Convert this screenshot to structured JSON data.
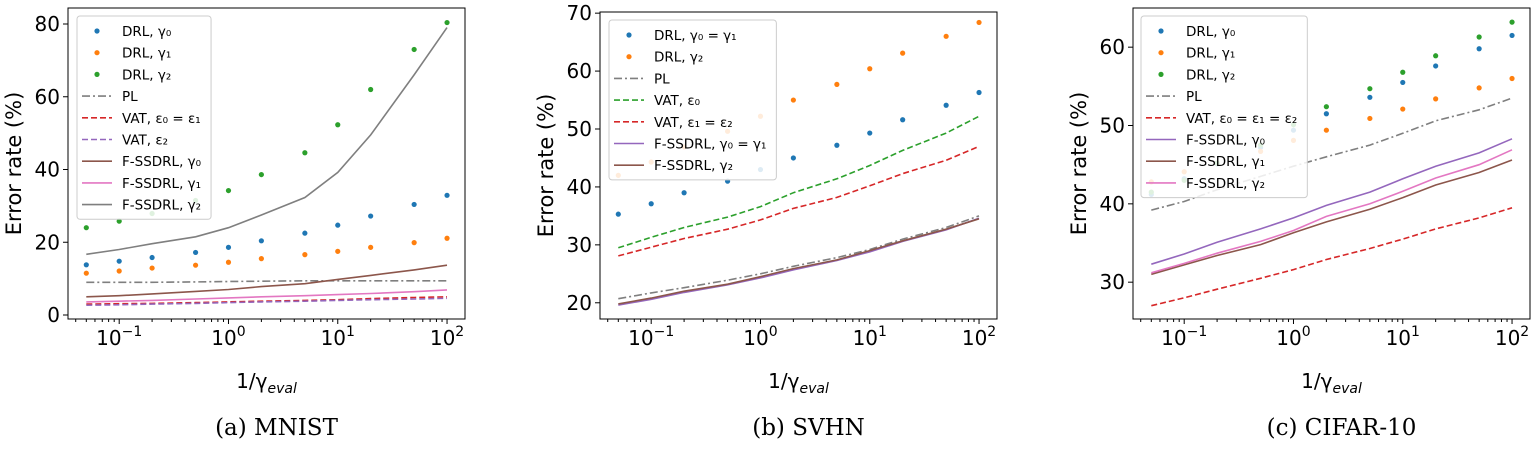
{
  "chart_data": [
    {
      "type": "scatter",
      "caption": "(a)  MNIST",
      "xlabel": "1/γ",
      "xlabel_sub": "eval",
      "ylabel": "Error rate (%)",
      "xscale": "log",
      "xlim": [
        0.034,
        146
      ],
      "ylim": [
        -1.1,
        84.4
      ],
      "yticks": [
        0,
        20,
        40,
        60,
        80
      ],
      "xticks": [
        {
          "base": "10",
          "exp": "−1",
          "value": 0.1
        },
        {
          "base": "10",
          "exp": "0",
          "value": 1
        },
        {
          "base": "10",
          "exp": "1",
          "value": 10
        },
        {
          "base": "10",
          "exp": "2",
          "value": 100
        }
      ],
      "grid": false,
      "legend": "upper-left",
      "x": [
        0.05,
        0.1,
        0.2,
        0.5,
        1,
        2,
        5,
        10,
        20,
        50,
        100
      ],
      "series": [
        {
          "name": "DRL, γ₀",
          "style": "marker",
          "color": "#1f77b4",
          "values": [
            13.8,
            14.8,
            15.8,
            17.2,
            18.6,
            20.4,
            22.5,
            24.7,
            27.2,
            30.4,
            32.9
          ]
        },
        {
          "name": "DRL, γ₁",
          "style": "marker",
          "color": "#ff7f0e",
          "values": [
            11.5,
            12.1,
            12.9,
            13.7,
            14.5,
            15.5,
            16.6,
            17.5,
            18.6,
            19.9,
            21.1
          ]
        },
        {
          "name": "DRL, γ₂",
          "style": "marker",
          "color": "#2ca02c",
          "values": [
            24.0,
            25.8,
            27.9,
            31.5,
            34.2,
            38.6,
            44.6,
            52.3,
            62.0,
            73.0,
            80.4
          ]
        },
        {
          "name": "PL",
          "style": "dashdot",
          "color": "#7f7f7f",
          "values": [
            9.0,
            9.0,
            9.0,
            9.1,
            9.2,
            9.3,
            9.4,
            9.4,
            9.4,
            9.4,
            9.4
          ]
        },
        {
          "name": "VAT, ε₀ = ε₁",
          "style": "dashed",
          "color": "#d62728",
          "values": [
            3.0,
            3.1,
            3.2,
            3.4,
            3.6,
            3.8,
            4.0,
            4.2,
            4.5,
            4.8,
            5.0
          ]
        },
        {
          "name": "VAT, ε₂",
          "style": "dashed",
          "color": "#9467bd",
          "values": [
            2.7,
            2.8,
            3.0,
            3.2,
            3.4,
            3.6,
            3.8,
            4.0,
            4.2,
            4.4,
            4.6
          ]
        },
        {
          "name": "F-SSDRL, γ₀",
          "style": "solid",
          "color": "#8c564b",
          "values": [
            5.0,
            5.3,
            5.8,
            6.5,
            7.0,
            7.8,
            8.6,
            9.8,
            10.9,
            12.4,
            13.7
          ]
        },
        {
          "name": "F-SSDRL, γ₁",
          "style": "solid",
          "color": "#e377c2",
          "values": [
            3.6,
            3.8,
            4.0,
            4.4,
            4.7,
            5.0,
            5.3,
            5.6,
            5.9,
            6.4,
            6.9
          ]
        },
        {
          "name": "F-SSDRL, γ₂",
          "style": "solid",
          "color": "#7f7f7f",
          "values": [
            16.7,
            18.0,
            19.6,
            21.5,
            24.0,
            27.5,
            32.3,
            39.2,
            49.5,
            66.0,
            79.0
          ]
        }
      ]
    },
    {
      "type": "scatter",
      "caption": "(b)  SVHN",
      "xlabel": "1/γ",
      "xlabel_sub": "eval",
      "ylabel": "Error rate (%)",
      "xscale": "log",
      "xlim": [
        0.034,
        146
      ],
      "ylim": [
        17.2,
        70.2
      ],
      "yticks": [
        20,
        30,
        40,
        50,
        60,
        70
      ],
      "xticks": [
        {
          "base": "10",
          "exp": "−1",
          "value": 0.1
        },
        {
          "base": "10",
          "exp": "0",
          "value": 1
        },
        {
          "base": "10",
          "exp": "1",
          "value": 10
        },
        {
          "base": "10",
          "exp": "2",
          "value": 100
        }
      ],
      "grid": false,
      "legend": "upper-left",
      "x": [
        0.05,
        0.1,
        0.2,
        0.5,
        1,
        2,
        5,
        10,
        20,
        50,
        100
      ],
      "series": [
        {
          "name": "DRL, γ₀ = γ₁",
          "style": "marker",
          "color": "#1f77b4",
          "values": [
            35.3,
            37.1,
            39.0,
            41.0,
            43.0,
            45.0,
            47.2,
            49.3,
            51.6,
            54.1,
            56.3
          ]
        },
        {
          "name": "DRL, γ₂",
          "style": "marker",
          "color": "#ff7f0e",
          "values": [
            42.0,
            44.3,
            46.9,
            49.6,
            52.2,
            55.0,
            57.7,
            60.4,
            63.1,
            66.0,
            68.4
          ]
        },
        {
          "name": "PL",
          "style": "dashdot",
          "color": "#7f7f7f",
          "values": [
            20.7,
            21.7,
            22.6,
            23.9,
            25.0,
            26.3,
            27.8,
            29.2,
            31.0,
            33.0,
            35.0
          ]
        },
        {
          "name": "VAT, ε₀",
          "style": "dashed",
          "color": "#2ca02c",
          "values": [
            29.5,
            31.3,
            33.0,
            34.8,
            36.6,
            39.0,
            41.4,
            43.7,
            46.3,
            49.3,
            52.2
          ]
        },
        {
          "name": "VAT, ε₁ = ε₂",
          "style": "dashed",
          "color": "#d62728",
          "values": [
            28.1,
            29.6,
            31.1,
            32.7,
            34.3,
            36.3,
            38.2,
            40.2,
            42.3,
            44.6,
            47.0
          ]
        },
        {
          "name": "F-SSDRL, γ₀ = γ₁",
          "style": "solid",
          "color": "#9467bd",
          "values": [
            19.6,
            20.6,
            21.8,
            23.1,
            24.3,
            25.7,
            27.3,
            28.8,
            30.6,
            32.6,
            34.6
          ]
        },
        {
          "name": "F-SSDRL, γ₂",
          "style": "solid",
          "color": "#8c564b",
          "values": [
            19.8,
            20.8,
            22.0,
            23.2,
            24.5,
            25.9,
            27.4,
            29.0,
            30.7,
            32.7,
            34.5
          ]
        }
      ]
    },
    {
      "type": "scatter",
      "caption": "(c)  CIFAR-10",
      "xlabel": "1/γ",
      "xlabel_sub": "eval",
      "ylabel": "Error rate (%)",
      "xscale": "log",
      "xlim": [
        0.034,
        146
      ],
      "ylim": [
        25.3,
        65.0
      ],
      "yticks": [
        30,
        40,
        50,
        60
      ],
      "xticks": [
        {
          "base": "10",
          "exp": "−1",
          "value": 0.1
        },
        {
          "base": "10",
          "exp": "0",
          "value": 1
        },
        {
          "base": "10",
          "exp": "1",
          "value": 10
        },
        {
          "base": "10",
          "exp": "2",
          "value": 100
        }
      ],
      "grid": false,
      "legend": "upper-left",
      "x": [
        0.05,
        0.1,
        0.2,
        0.5,
        1,
        2,
        5,
        10,
        20,
        50,
        100
      ],
      "series": [
        {
          "name": "DRL, γ₀",
          "style": "marker",
          "color": "#1f77b4",
          "values": [
            41.2,
            43.2,
            45.1,
            47.2,
            49.4,
            51.5,
            53.6,
            55.5,
            57.6,
            59.8,
            61.5
          ]
        },
        {
          "name": "DRL, γ₁",
          "style": "marker",
          "color": "#ff7f0e",
          "values": [
            42.8,
            44.1,
            45.2,
            46.7,
            48.1,
            49.4,
            50.9,
            52.1,
            53.4,
            54.8,
            56.0
          ]
        },
        {
          "name": "DRL, γ₂",
          "style": "marker",
          "color": "#2ca02c",
          "values": [
            41.5,
            43.0,
            45.2,
            47.5,
            50.1,
            52.4,
            54.7,
            56.8,
            58.9,
            61.3,
            63.2
          ]
        },
        {
          "name": "PL",
          "style": "dashdot",
          "color": "#7f7f7f",
          "values": [
            39.2,
            40.3,
            41.8,
            43.5,
            44.8,
            46.0,
            47.5,
            49.0,
            50.6,
            52.0,
            53.5
          ]
        },
        {
          "name": "VAT, ε₀ = ε₁ = ε₂",
          "style": "dashed",
          "color": "#d62728",
          "values": [
            27.0,
            28.0,
            29.1,
            30.5,
            31.6,
            32.9,
            34.3,
            35.5,
            36.8,
            38.2,
            39.5
          ]
        },
        {
          "name": "F-SSDRL, γ₀",
          "style": "solid",
          "color": "#9467bd",
          "values": [
            32.3,
            33.6,
            35.1,
            36.8,
            38.2,
            39.8,
            41.5,
            43.2,
            44.8,
            46.5,
            48.3
          ]
        },
        {
          "name": "F-SSDRL, γ₁",
          "style": "solid",
          "color": "#8c564b",
          "values": [
            31.0,
            32.2,
            33.4,
            34.8,
            36.3,
            37.7,
            39.3,
            40.8,
            42.4,
            44.0,
            45.6
          ]
        },
        {
          "name": "F-SSDRL, γ₂",
          "style": "solid",
          "color": "#e377c2",
          "values": [
            31.2,
            32.4,
            33.7,
            35.2,
            36.6,
            38.4,
            40.0,
            41.6,
            43.3,
            45.0,
            46.9
          ]
        }
      ]
    }
  ]
}
